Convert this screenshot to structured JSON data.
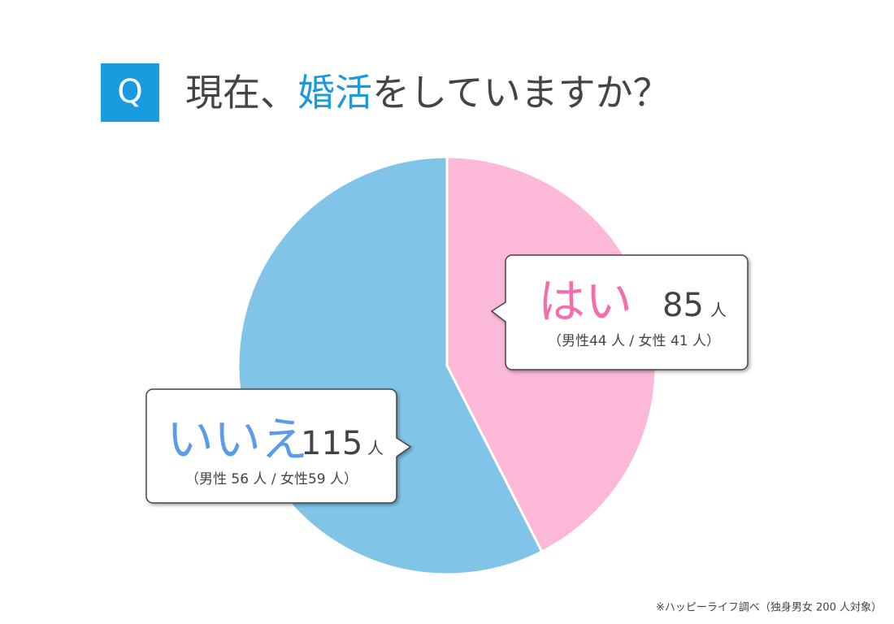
{
  "chart_data": {
    "type": "pie",
    "badge": "Q",
    "title": [
      "現在、",
      "婚活",
      "をしていますか？"
    ],
    "categories": [
      "はい",
      "いいえ"
    ],
    "values": [
      85,
      115
    ],
    "colors": [
      "#fbb8d7",
      "#80c5e8"
    ],
    "label_colors": [
      "#f26fae",
      "#5b9be8"
    ],
    "unit": "人",
    "breakdowns": [
      "（男性44 人 / 女性 41 人）",
      "（男性 56 人 / 女性59 人）"
    ],
    "note": "※ハッピーライフ調べ（独身男女 200 人対象）"
  }
}
